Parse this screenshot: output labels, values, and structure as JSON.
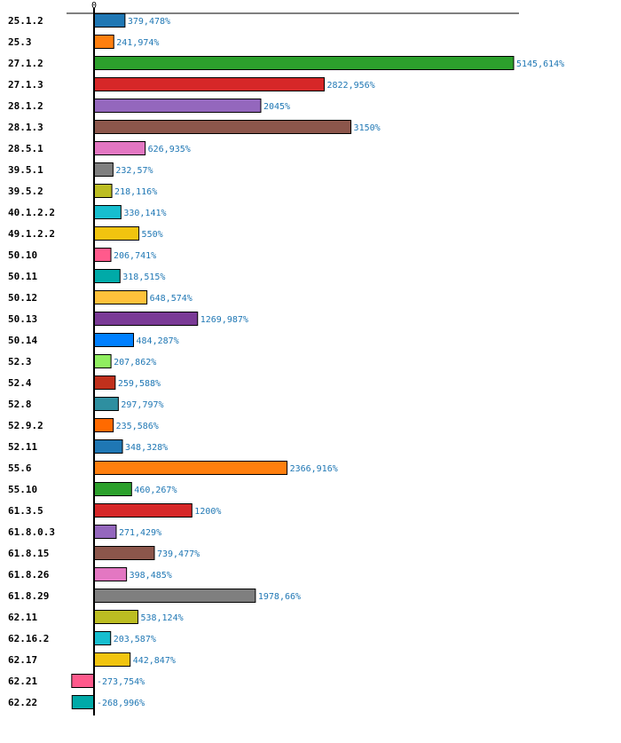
{
  "chart_data": {
    "type": "bar",
    "orientation": "horizontal",
    "title": "",
    "xlabel": "",
    "ylabel": "",
    "xlim": [
      -337,
      5210
    ],
    "x_ticks": [
      "0"
    ],
    "grid": false,
    "legend": "none",
    "value_suffix": "%",
    "categories": [
      "25.1.2",
      "25.3",
      "27.1.2",
      "27.1.3",
      "28.1.2",
      "28.1.3",
      "28.5.1",
      "39.5.1",
      "39.5.2",
      "40.1.2.2",
      "49.1.2.2",
      "50.10",
      "50.11",
      "50.12",
      "50.13",
      "50.14",
      "52.3",
      "52.4",
      "52.8",
      "52.9.2",
      "52.11",
      "55.6",
      "55.10",
      "61.3.5",
      "61.8.0.3",
      "61.8.15",
      "61.8.26",
      "61.8.29",
      "62.11",
      "62.16.2",
      "62.17",
      "62.21",
      "62.22"
    ],
    "values": [
      379.478,
      241.974,
      5145.614,
      2822.956,
      2045,
      3150,
      626.935,
      232.57,
      218.116,
      330.141,
      550,
      206.741,
      318.515,
      648.574,
      1269.987,
      484.287,
      207.862,
      259.588,
      297.797,
      235.586,
      348.328,
      2366.916,
      460.267,
      1200,
      271.429,
      739.477,
      398.485,
      1978.66,
      538.124,
      203.587,
      442.847,
      -273.754,
      -268.996
    ],
    "value_labels": [
      "379,478%",
      "241,974%",
      "5145,614%",
      "2822,956%",
      "2045%",
      "3150%",
      "626,935%",
      "232,57%",
      "218,116%",
      "330,141%",
      "550%",
      "206,741%",
      "318,515%",
      "648,574%",
      "1269,987%",
      "484,287%",
      "207,862%",
      "259,588%",
      "297,797%",
      "235,586%",
      "348,328%",
      "2366,916%",
      "460,267%",
      "1200%",
      "271,429%",
      "739,477%",
      "398,485%",
      "1978,66%",
      "538,124%",
      "203,587%",
      "442,847%",
      "-273,754%",
      "-268,996%"
    ],
    "colors": [
      "#1f77b4",
      "#ff7f0e",
      "#2ca02c",
      "#d62728",
      "#9467bd",
      "#8c564b",
      "#e377c2",
      "#7f7f7f",
      "#bcbd22",
      "#17becf",
      "#f1c40f",
      "#ff5a8c",
      "#00aaa8",
      "#ffc13b",
      "#7a3a96",
      "#0080ff",
      "#90ee60",
      "#c0301c",
      "#2e8fa0",
      "#ff6a00",
      "#1f77b4",
      "#ff7f0e",
      "#2ca02c",
      "#d62728",
      "#9467bd",
      "#8c564b",
      "#e377c2",
      "#7f7f7f",
      "#bcbd22",
      "#17becf",
      "#f1c40f",
      "#ff5a8c",
      "#00aaa8"
    ]
  }
}
